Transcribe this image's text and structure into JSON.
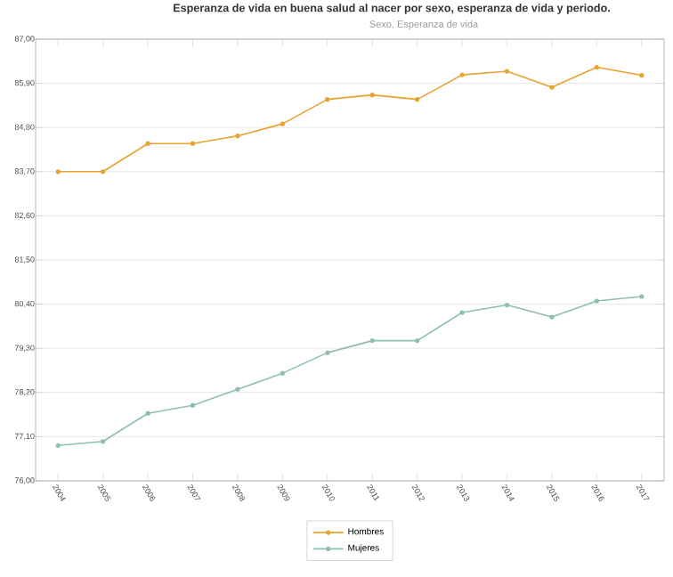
{
  "chart_data": {
    "type": "line",
    "title": "Esperanza de vida en buena salud al nacer por sexo, esperanza de vida  y periodo.",
    "subtitle": "Sexo, Esperanza de vida",
    "categories": [
      "2004",
      "2005",
      "2006",
      "2007",
      "2008",
      "2009",
      "2010",
      "2011",
      "2012",
      "2013",
      "2014",
      "2015",
      "2016",
      "2017"
    ],
    "series": [
      {
        "name": "Hombres",
        "color": "#e8a331",
        "values": [
          83.7,
          83.7,
          84.4,
          84.4,
          84.59,
          84.89,
          85.5,
          85.61,
          85.5,
          86.11,
          86.2,
          85.8,
          86.3,
          86.1
        ]
      },
      {
        "name": "Mujeres",
        "color": "#8fbfae",
        "values": [
          76.88,
          76.98,
          77.68,
          77.88,
          78.28,
          78.68,
          79.19,
          79.49,
          79.49,
          80.19,
          80.38,
          80.08,
          80.48,
          80.59
        ]
      }
    ],
    "ylim": [
      76,
      87
    ],
    "yticks": [
      {
        "value": 76,
        "label": "76,00"
      },
      {
        "value": 77.1,
        "label": "77,10"
      },
      {
        "value": 78.2,
        "label": "78,20"
      },
      {
        "value": 79.3,
        "label": "79,30"
      },
      {
        "value": 80.4,
        "label": "80,40"
      },
      {
        "value": 81.5,
        "label": "81,50"
      },
      {
        "value": 82.6,
        "label": "82,60"
      },
      {
        "value": 83.7,
        "label": "83,70"
      },
      {
        "value": 84.8,
        "label": "84,80"
      },
      {
        "value": 85.9,
        "label": "85,90"
      },
      {
        "value": 87,
        "label": "87,00"
      }
    ],
    "grid": "y",
    "legend": "bottom",
    "marker": "circle",
    "line_style": "solid"
  }
}
